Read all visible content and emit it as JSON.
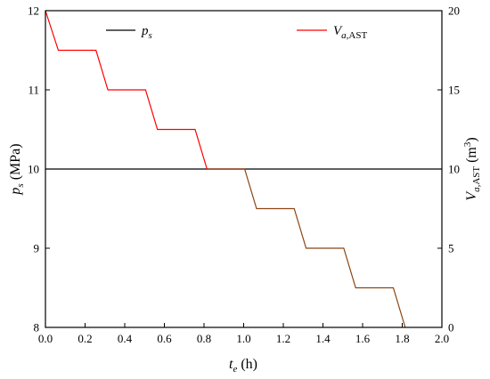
{
  "chart_data": {
    "type": "line",
    "title": "",
    "x_axis": {
      "label_main": "t",
      "label_sub": "e",
      "label_unit": " (h)",
      "range": [
        0.0,
        2.0
      ],
      "ticks": [
        "0.0",
        "0.2",
        "0.4",
        "0.6",
        "0.8",
        "1.0",
        "1.2",
        "1.4",
        "1.6",
        "1.8",
        "2.0"
      ]
    },
    "y_left": {
      "label_main": "p",
      "label_sub": "s",
      "label_unit": " (MPa)",
      "range": [
        8,
        12
      ],
      "ticks": [
        "8",
        "9",
        "10",
        "11",
        "12"
      ]
    },
    "y_right": {
      "label_main": "V",
      "label_sub": "a",
      "label_sub2": ",AST",
      "label_unit_pre": " (m",
      "label_sup": "3",
      "label_unit_post": ")",
      "range": [
        0,
        20
      ],
      "ticks": [
        "0",
        "5",
        "10",
        "15",
        "20"
      ]
    },
    "grid": false,
    "legend_placement": "top",
    "series": [
      {
        "name_main": "p",
        "name_sub": "s",
        "color": "#000000",
        "axis": "left",
        "x": [
          0.0,
          2.0
        ],
        "y": [
          10,
          10
        ]
      },
      {
        "name_main": "V",
        "name_sub": "a",
        "name_sub2": ",AST",
        "color": "#ff0000",
        "color_lower": "#8b4513",
        "axis": "right",
        "x": [
          0.0,
          0.065,
          0.255,
          0.315,
          0.505,
          0.565,
          0.755,
          0.815,
          1.005,
          1.065,
          1.255,
          1.315,
          1.505,
          1.565,
          1.755,
          1.815
        ],
        "y": [
          20,
          17.5,
          17.5,
          15,
          15,
          12.5,
          12.5,
          10,
          10,
          7.5,
          7.5,
          5,
          5,
          2.5,
          2.5,
          0
        ]
      }
    ]
  }
}
